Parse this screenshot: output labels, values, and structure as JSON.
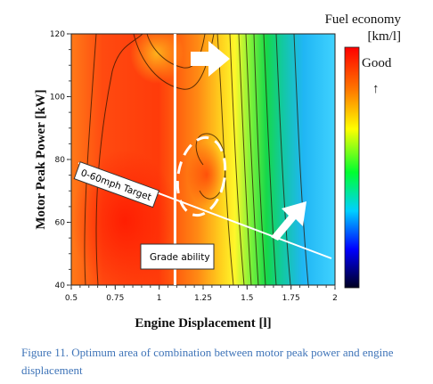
{
  "chart_data": {
    "type": "heatmap",
    "xlabel": "Engine Displacement  [l]",
    "ylabel": "Motor Peak Power [kW]",
    "xlim": [
      0.5,
      2
    ],
    "ylim": [
      40,
      120
    ],
    "x_ticks": [
      "0.5",
      "0.75",
      "1",
      "1.25",
      "1.5",
      "1.75",
      "2"
    ],
    "y_ticks": [
      "40",
      "60",
      "80",
      "100",
      "120"
    ],
    "colorbar": {
      "title_line1": "Fuel economy",
      "title_line2": "[km/l]",
      "good_label": "Good",
      "arrow": "↑",
      "colors": [
        "#ff0000",
        "#ff8000",
        "#ffff00",
        "#00ff40",
        "#00c8ff",
        "#0000ff",
        "#000030"
      ]
    },
    "annotations": {
      "target_line_label": "0-60mph Target",
      "grade_label": "Grade ability",
      "grade_limit_x": 1.09,
      "optimum_region_center": [
        1.2,
        73
      ]
    }
  },
  "caption": "Figure 11. Optimum area of combination between motor peak power and engine displacement"
}
